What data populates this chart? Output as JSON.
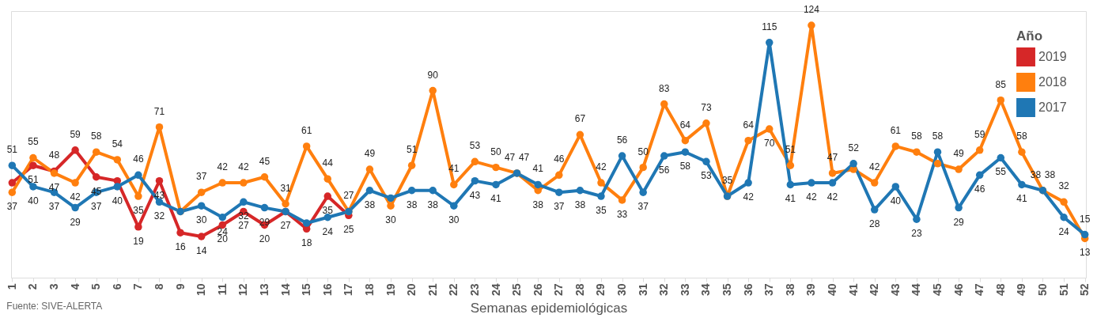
{
  "chart_data": {
    "type": "line",
    "xlabel": "Semanas epidemiológicas",
    "legend_title": "Año",
    "legend": "top right",
    "marker": "circle",
    "grid": false,
    "annotations": [
      "Fuente: SIVE-ALERTA"
    ],
    "categories": [
      "1",
      "2",
      "3",
      "4",
      "5",
      "6",
      "7",
      "8",
      "9",
      "10",
      "11",
      "12",
      "13",
      "14",
      "15",
      "16",
      "17",
      "18",
      "19",
      "20",
      "21",
      "22",
      "23",
      "24",
      "25",
      "26",
      "27",
      "28",
      "29",
      "30",
      "31",
      "32",
      "33",
      "34",
      "35",
      "36",
      "37",
      "38",
      "39",
      "40",
      "41",
      "42",
      "43",
      "44",
      "45",
      "46",
      "47",
      "48",
      "49",
      "50",
      "51",
      "52"
    ],
    "series": [
      {
        "name": "2019",
        "color": "#d62728",
        "values": [
          42,
          51,
          48,
          59,
          45,
          43,
          19,
          43,
          16,
          14,
          20,
          27,
          20,
          27,
          18,
          35,
          25,
          null,
          null,
          null,
          null,
          null,
          null,
          null,
          null,
          null,
          null,
          null,
          null,
          null,
          null,
          null,
          null,
          null,
          null,
          null,
          null,
          null,
          null,
          null,
          null,
          null,
          null,
          null,
          null,
          null,
          null,
          null,
          null,
          null,
          null,
          null
        ],
        "value_labels": [
          null,
          "51",
          "48",
          "59",
          "45",
          null,
          "19",
          "43",
          "16",
          "14",
          "20",
          "27",
          "20",
          "27",
          "18",
          "35",
          "25",
          null,
          null,
          null,
          null,
          null,
          null,
          null,
          null,
          null,
          null,
          null,
          null,
          null,
          null,
          null,
          null,
          null,
          null,
          null,
          null,
          null,
          null,
          null,
          null,
          null,
          null,
          null,
          null,
          null,
          null,
          null,
          null,
          null,
          null,
          null
        ]
      },
      {
        "name": "2018",
        "color": "#ff7f0e",
        "values": [
          37,
          55,
          47,
          42,
          58,
          54,
          35,
          71,
          27,
          37,
          42,
          42,
          45,
          31,
          61,
          44,
          27,
          49,
          30,
          51,
          90,
          41,
          53,
          50,
          47,
          38,
          46,
          67,
          42,
          33,
          50,
          83,
          64,
          73,
          35,
          64,
          70,
          51,
          124,
          47,
          49,
          42,
          61,
          58,
          52,
          49,
          59,
          85,
          58,
          38,
          32,
          13
        ],
        "value_labels": [
          "37",
          "55",
          "47",
          "42",
          "58",
          "54",
          "35",
          "71",
          null,
          "37",
          "42",
          "42",
          "45",
          "31",
          "61",
          "44",
          null,
          "49",
          "30",
          "51",
          "90",
          "41",
          "53",
          "50",
          "47",
          "38",
          "46",
          "67",
          "42",
          "33",
          "50",
          "83",
          "64",
          "73",
          null,
          "64",
          "70",
          "51",
          "124",
          "47",
          null,
          "42",
          "61",
          "58",
          null,
          "49",
          "59",
          "85",
          "58",
          "38",
          "32",
          "13"
        ]
      },
      {
        "name": "2017",
        "color": "#1f77b4",
        "values": [
          51,
          40,
          37,
          29,
          37,
          40,
          46,
          32,
          27,
          30,
          24,
          32,
          29,
          27,
          21,
          24,
          27,
          38,
          34,
          38,
          38,
          30,
          43,
          41,
          47,
          41,
          37,
          38,
          35,
          56,
          37,
          56,
          58,
          53,
          35,
          42,
          115,
          41,
          42,
          42,
          52,
          28,
          40,
          23,
          58,
          29,
          46,
          55,
          41,
          38,
          24,
          15
        ],
        "value_labels": [
          "51",
          "40",
          "37",
          "29",
          "37",
          "40",
          "46",
          "32",
          null,
          "30",
          "24",
          "32",
          "29",
          null,
          null,
          "24",
          "27",
          "38",
          null,
          "38",
          "38",
          "30",
          "43",
          "41",
          "47",
          "41",
          "37",
          "38",
          "35",
          "56",
          "37",
          "56",
          "58",
          "53",
          "35",
          "42",
          "115",
          "41",
          "42",
          "42",
          "52",
          "28",
          "40",
          "23",
          "58",
          "29",
          "46",
          "55",
          "41",
          "38",
          "24",
          "15"
        ]
      }
    ]
  }
}
